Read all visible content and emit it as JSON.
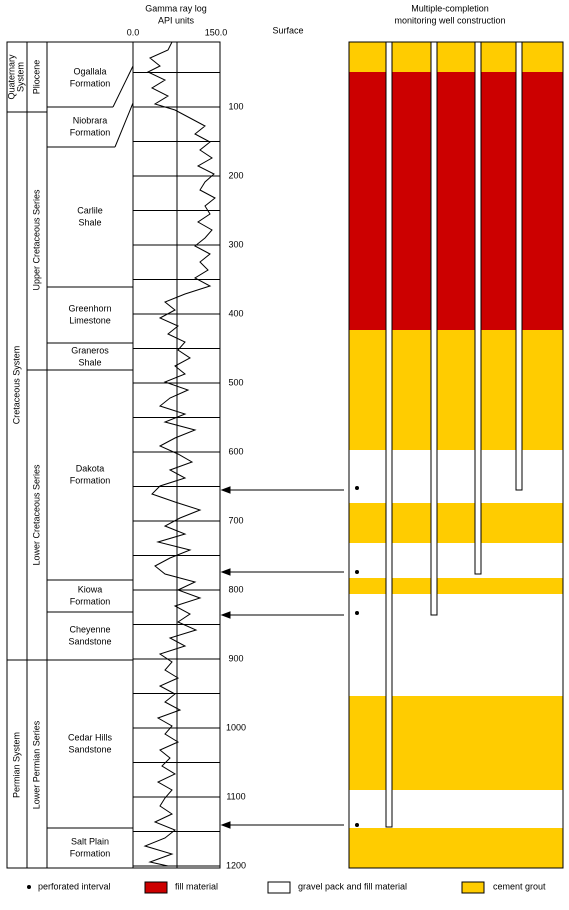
{
  "gamma_header": [
    "Gamma ray log",
    "API units"
  ],
  "gamma_scale": [
    "0.0",
    "150.0"
  ],
  "surface": "Surface",
  "well_header": [
    "Multiple-completion",
    "monitoring well construction"
  ],
  "depths": [
    100,
    200,
    300,
    400,
    500,
    600,
    700,
    800,
    900,
    1000,
    1100,
    1200
  ],
  "systems": [
    [
      "Quaternary",
      "System"
    ],
    [
      "Cretaceous System"
    ],
    [
      "Permian System"
    ]
  ],
  "series": [
    "Pliocene",
    "Upper Cretaceous Series",
    "Lower Cretaceous Series",
    "Lower Permian Series"
  ],
  "formations": [
    [
      "Ogallala",
      "Formation"
    ],
    [
      "Niobrara",
      "Formation"
    ],
    [
      "Carlile",
      "Shale"
    ],
    [
      "Greenhorn",
      "Limestone"
    ],
    [
      "Graneros",
      "Shale"
    ],
    [
      "Dakota",
      "Formation"
    ],
    [
      "Kiowa",
      "Formation"
    ],
    [
      "Cheyenne",
      "Sandstone"
    ],
    [
      "Cedar Hills",
      "Sandstone"
    ],
    [
      "Salt Plain",
      "Formation"
    ]
  ],
  "legend": [
    "perforated interval",
    "fill material",
    "gravel pack and fill material",
    "cement grout"
  ]
}
